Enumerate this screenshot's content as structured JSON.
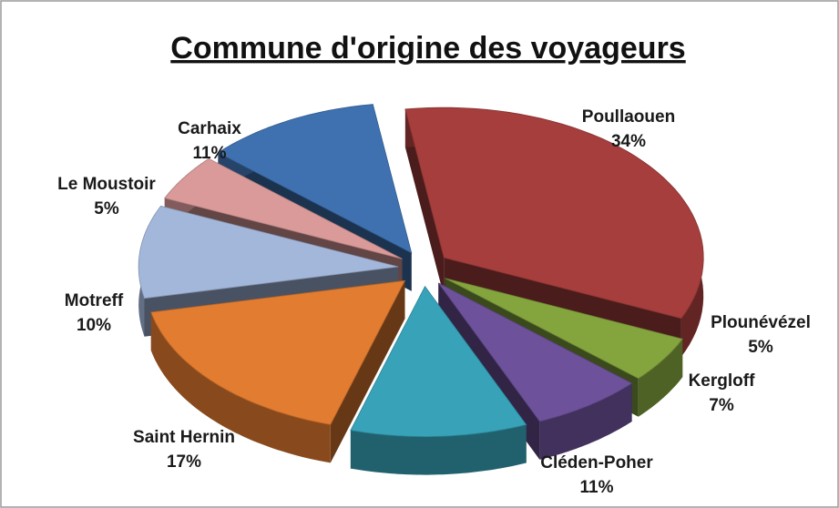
{
  "chart_data": {
    "type": "pie",
    "title": "Commune d'origine des voyageurs",
    "categories": [
      "Poullaouen",
      "Plounévézel",
      "Kergloff",
      "Cléden-Poher",
      "Saint Hernin",
      "Motreff",
      "Le Moustoir",
      "Carhaix"
    ],
    "values": [
      34,
      5,
      7,
      11,
      17,
      10,
      5,
      11
    ],
    "value_labels": [
      "34%",
      "5%",
      "7%",
      "11%",
      "17%",
      "10%",
      "5%",
      "11%"
    ],
    "colors": [
      "#a53e3c",
      "#84a43e",
      "#6d519a",
      "#37a2b8",
      "#e27c30",
      "#a3b7da",
      "#d99a99",
      "#3f71b0"
    ]
  }
}
